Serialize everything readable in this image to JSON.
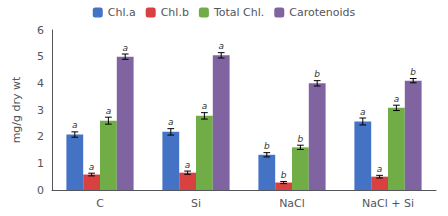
{
  "chart_data": {
    "type": "bar",
    "ylabel": "mg/g dry wt",
    "categories": [
      "C",
      "Si",
      "NaCl",
      "NaCl + Si"
    ],
    "series": [
      {
        "name": "Chl.a",
        "color": "#4472C4",
        "values": [
          2.08,
          2.18,
          1.32,
          2.57
        ],
        "errors": [
          0.1,
          0.12,
          0.08,
          0.13
        ],
        "annotations": [
          "a",
          "a",
          "b",
          "a"
        ]
      },
      {
        "name": "Chl.b",
        "color": "#D94040",
        "values": [
          0.58,
          0.65,
          0.28,
          0.5
        ],
        "errors": [
          0.05,
          0.06,
          0.04,
          0.05
        ],
        "annotations": [
          "a",
          "a",
          "b",
          "a"
        ]
      },
      {
        "name": "Total Chl.",
        "color": "#70AD47",
        "values": [
          2.6,
          2.78,
          1.6,
          3.08
        ],
        "errors": [
          0.13,
          0.12,
          0.08,
          0.1
        ],
        "annotations": [
          "a",
          "a",
          "b",
          "a"
        ]
      },
      {
        "name": "Carotenoids",
        "color": "#8064A2",
        "values": [
          5.0,
          5.05,
          4.0,
          4.1
        ],
        "errors": [
          0.1,
          0.1,
          0.1,
          0.08
        ],
        "annotations": [
          "a",
          "a",
          "b",
          "b"
        ]
      }
    ],
    "ylim": [
      0,
      6
    ],
    "yticks": [
      0,
      1,
      2,
      3,
      4,
      5,
      6
    ],
    "grid": false,
    "legend": "top"
  }
}
